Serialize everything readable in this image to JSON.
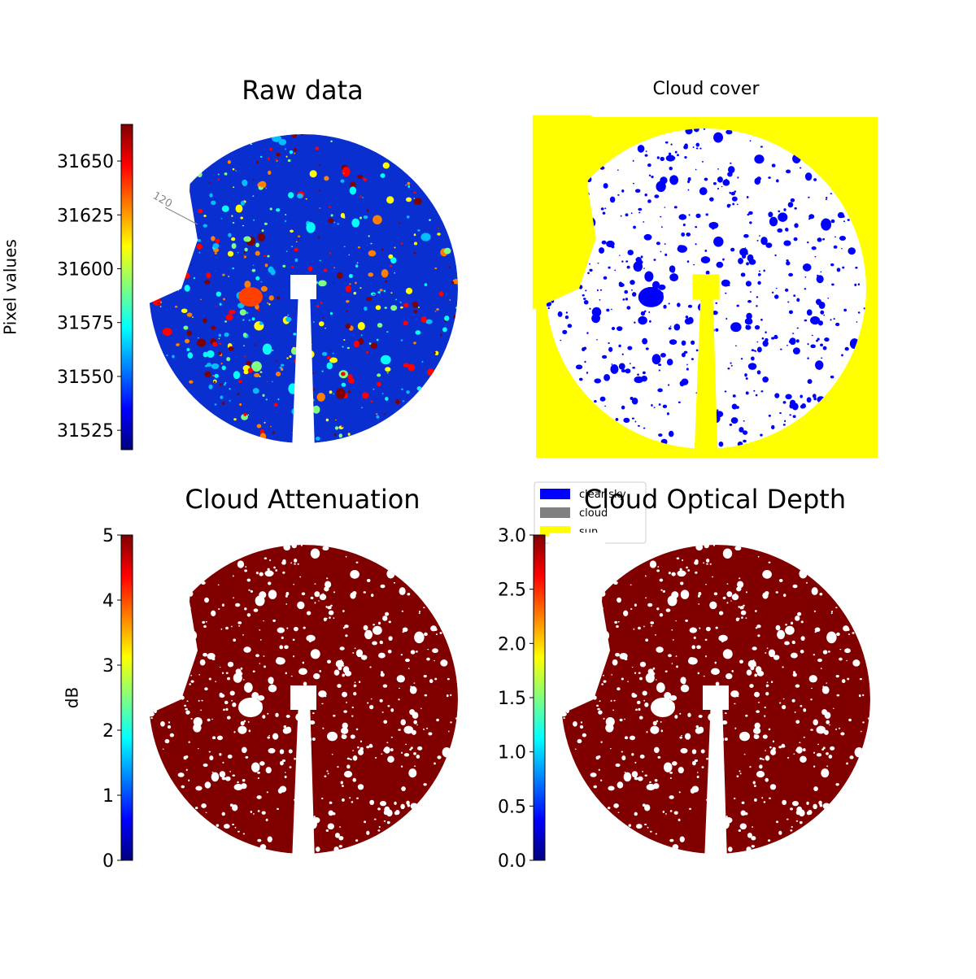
{
  "chart_data": [
    {
      "type": "image",
      "title": "Raw data",
      "annotations": [
        "120"
      ],
      "colorbar": {
        "label": "Pixel values",
        "colormap": "jet",
        "lim": [
          31516,
          31667
        ],
        "ticks": [
          31525,
          31550,
          31575,
          31600,
          31625,
          31650
        ]
      }
    },
    {
      "type": "image",
      "title": "Cloud cover",
      "legend": [
        {
          "name": "clear sky",
          "color": "#0000ff"
        },
        {
          "name": "cloud",
          "color": "#808080"
        },
        {
          "name": "sun",
          "color": "#ffff00"
        }
      ]
    },
    {
      "type": "image",
      "title": "Cloud Attenuation",
      "colorbar": {
        "label": "dB",
        "colormap": "jet",
        "lim": [
          0,
          5
        ],
        "ticks": [
          0,
          1,
          2,
          3,
          4,
          5
        ]
      }
    },
    {
      "type": "image",
      "title": "Cloud Optical Depth",
      "colorbar": {
        "colormap": "jet",
        "lim": [
          0,
          3
        ],
        "ticks": [
          {
            "value": 0,
            "label": "0.0"
          },
          0.5,
          {
            "value": 1,
            "label": "1.0"
          },
          1.5,
          {
            "value": 2,
            "label": "2.0"
          },
          2.5,
          {
            "value": 3,
            "label": "3.0"
          }
        ]
      }
    }
  ]
}
